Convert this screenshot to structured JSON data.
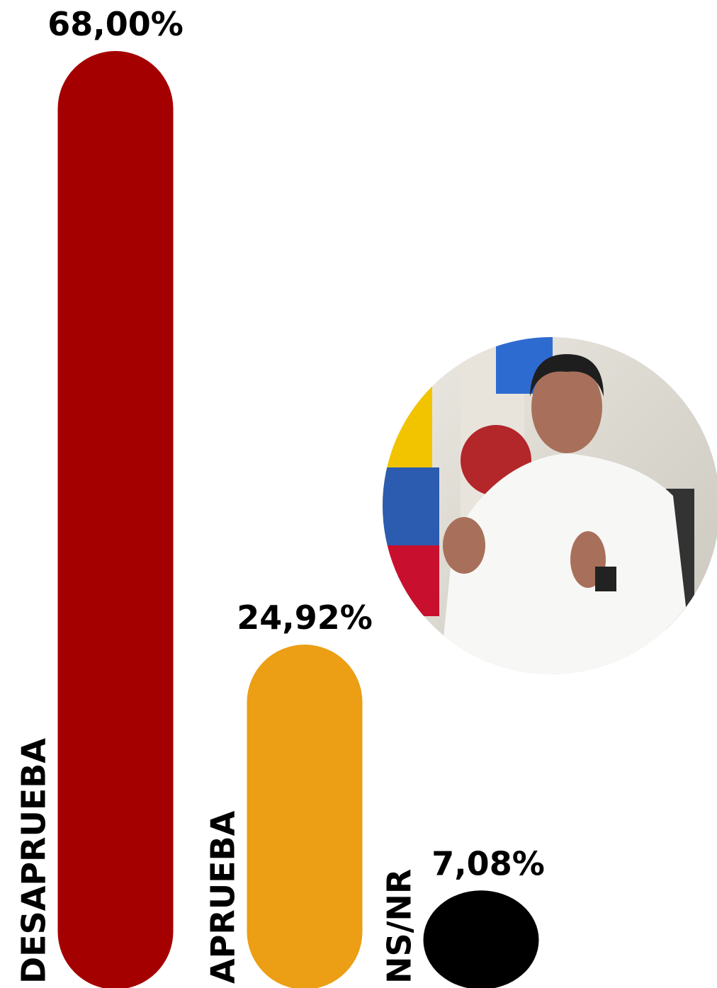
{
  "chart_data": {
    "type": "bar",
    "categories": [
      "DESAPRUEBA",
      "APRUEBA",
      "NS/NR"
    ],
    "values": [
      68,
      24.92,
      7.08
    ],
    "value_labels": [
      "68,00%",
      "24,92%",
      "7,08%"
    ],
    "colors": [
      "#a50000",
      "#ec9e14",
      "#000000"
    ]
  }
}
